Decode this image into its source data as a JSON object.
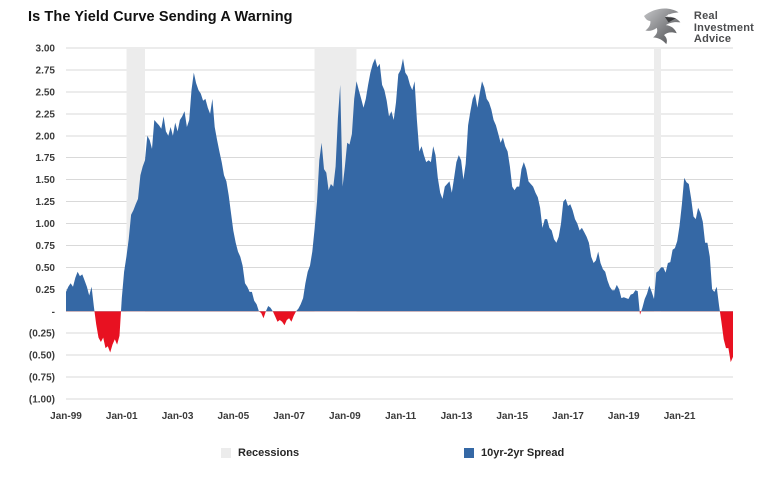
{
  "meta": {
    "title": "Is The Yield Curve Sending A Warning"
  },
  "logo": {
    "icon": "eagle-icon",
    "line1": "Real",
    "line2": "Investment",
    "line3": "Advice"
  },
  "legend": [
    {
      "label": "Recessions",
      "color": "#ECECEC"
    },
    {
      "label": "10yr-2yr Spread",
      "color": "#3568A5"
    }
  ],
  "chart_data": {
    "type": "area",
    "title": "Is The Yield Curve Sending A Warning",
    "xlabel": "",
    "ylabel": "",
    "frequency": "monthly",
    "x_start": "1999-01",
    "x_end": "2022-12",
    "ylim": [
      -1.0,
      3.0
    ],
    "grid": true,
    "y_tick_values": [
      3.0,
      2.75,
      2.5,
      2.25,
      2.0,
      1.75,
      1.5,
      1.25,
      1.0,
      0.75,
      0.5,
      0.25,
      0,
      -0.25,
      -0.5,
      -0.75,
      -1.0
    ],
    "y_tick_labels": [
      "3.00",
      "2.75",
      "2.50",
      "2.25",
      "2.00",
      "1.75",
      "1.50",
      "1.25",
      "1.00",
      "0.75",
      "0.50",
      "0.25",
      "-",
      "(0.25)",
      "(0.50)",
      "(0.75)",
      "(1.00)"
    ],
    "x_tick_labels": [
      "Jan-99",
      "Jan-01",
      "Jan-03",
      "Jan-05",
      "Jan-07",
      "Jan-09",
      "Jan-11",
      "Jan-13",
      "Jan-15",
      "Jan-17",
      "Jan-19",
      "Jan-21"
    ],
    "x_tick_every_months": 24,
    "recessions": {
      "label": "Recessions",
      "color": "#ECECEC",
      "bands": [
        {
          "from": "2001-03",
          "to": "2001-11"
        },
        {
          "from": "2007-12",
          "to": "2009-06"
        },
        {
          "from": "2020-02",
          "to": "2020-05"
        }
      ]
    },
    "series": [
      {
        "name": "10yr-2yr Spread",
        "color_positive": "#3568A5",
        "color_negative": "#E81121",
        "values": [
          0.22,
          0.28,
          0.32,
          0.28,
          0.38,
          0.45,
          0.4,
          0.42,
          0.35,
          0.28,
          0.18,
          0.28,
          0.05,
          -0.15,
          -0.3,
          -0.35,
          -0.3,
          -0.42,
          -0.4,
          -0.47,
          -0.38,
          -0.32,
          -0.38,
          -0.28,
          0.15,
          0.45,
          0.62,
          0.82,
          1.1,
          1.15,
          1.22,
          1.28,
          1.55,
          1.65,
          1.72,
          2.0,
          1.95,
          1.85,
          2.18,
          2.15,
          2.12,
          2.08,
          2.22,
          2.05,
          2.0,
          2.1,
          2.0,
          2.15,
          2.05,
          2.18,
          2.22,
          2.28,
          2.1,
          2.18,
          2.52,
          2.72,
          2.6,
          2.52,
          2.48,
          2.4,
          2.42,
          2.32,
          2.25,
          2.42,
          2.1,
          1.95,
          1.82,
          1.7,
          1.55,
          1.48,
          1.32,
          1.12,
          0.92,
          0.78,
          0.68,
          0.62,
          0.52,
          0.32,
          0.28,
          0.22,
          0.22,
          0.12,
          0.08,
          0.0,
          -0.02,
          -0.08,
          0.0,
          0.06,
          0.04,
          0.0,
          -0.06,
          -0.12,
          -0.1,
          -0.12,
          -0.16,
          -0.1,
          -0.08,
          -0.12,
          -0.05,
          0.0,
          0.03,
          0.08,
          0.15,
          0.32,
          0.45,
          0.52,
          0.68,
          0.95,
          1.25,
          1.72,
          1.92,
          1.62,
          1.58,
          1.38,
          1.45,
          1.42,
          1.65,
          2.2,
          2.58,
          1.42,
          1.65,
          1.92,
          1.9,
          2.02,
          2.42,
          2.62,
          2.52,
          2.42,
          2.32,
          2.42,
          2.58,
          2.72,
          2.82,
          2.88,
          2.78,
          2.82,
          2.58,
          2.52,
          2.4,
          2.22,
          2.28,
          2.18,
          2.38,
          2.7,
          2.75,
          2.88,
          2.72,
          2.68,
          2.58,
          2.52,
          2.62,
          2.18,
          1.82,
          1.88,
          1.78,
          1.7,
          1.72,
          1.7,
          1.88,
          1.78,
          1.52,
          1.35,
          1.28,
          1.42,
          1.45,
          1.48,
          1.35,
          1.52,
          1.7,
          1.78,
          1.72,
          1.5,
          1.68,
          2.12,
          2.28,
          2.42,
          2.48,
          2.32,
          2.48,
          2.62,
          2.55,
          2.42,
          2.38,
          2.3,
          2.18,
          2.12,
          2.02,
          1.92,
          1.98,
          1.88,
          1.82,
          1.65,
          1.42,
          1.38,
          1.42,
          1.42,
          1.62,
          1.7,
          1.62,
          1.48,
          1.45,
          1.42,
          1.35,
          1.3,
          1.18,
          0.95,
          1.05,
          1.05,
          0.95,
          0.92,
          0.82,
          0.78,
          0.85,
          1.0,
          1.25,
          1.28,
          1.2,
          1.22,
          1.15,
          1.05,
          1.0,
          0.92,
          0.95,
          0.9,
          0.85,
          0.78,
          0.62,
          0.55,
          0.58,
          0.68,
          0.55,
          0.48,
          0.45,
          0.35,
          0.28,
          0.24,
          0.24,
          0.3,
          0.25,
          0.15,
          0.16,
          0.15,
          0.14,
          0.19,
          0.2,
          0.24,
          0.23,
          -0.04,
          0.04,
          0.14,
          0.2,
          0.29,
          0.22,
          0.14,
          0.44,
          0.46,
          0.5,
          0.5,
          0.44,
          0.55,
          0.56,
          0.7,
          0.72,
          0.8,
          0.97,
          1.22,
          1.52,
          1.47,
          1.45,
          1.28,
          1.08,
          1.05,
          1.18,
          1.12,
          1.02,
          0.78,
          0.78,
          0.62,
          0.25,
          0.22,
          0.28,
          0.06,
          -0.12,
          -0.32,
          -0.42,
          -0.42,
          -0.58,
          -0.52
        ]
      }
    ]
  }
}
